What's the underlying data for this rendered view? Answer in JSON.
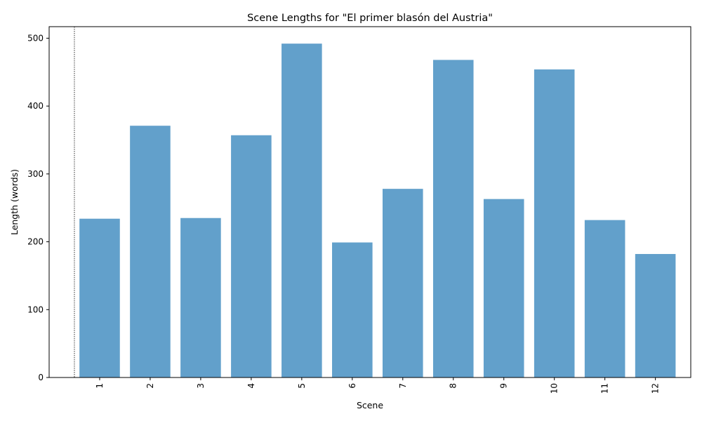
{
  "chart_data": {
    "type": "bar",
    "title": "Scene Lengths for \"El primer blasón del Austria\"",
    "xlabel": "Scene",
    "ylabel": "Length (words)",
    "categories": [
      "1",
      "2",
      "3",
      "4",
      "5",
      "6",
      "7",
      "8",
      "9",
      "10",
      "11",
      "12"
    ],
    "values": [
      234,
      371,
      235,
      357,
      492,
      199,
      278,
      468,
      263,
      454,
      232,
      182
    ],
    "ylim": [
      0,
      517
    ],
    "yticks": [
      "0",
      "100",
      "200",
      "300",
      "400",
      "500"
    ],
    "bar_color": "#62a0cb",
    "grid": false,
    "reference_line": "dotted vertical line left of first bar"
  }
}
